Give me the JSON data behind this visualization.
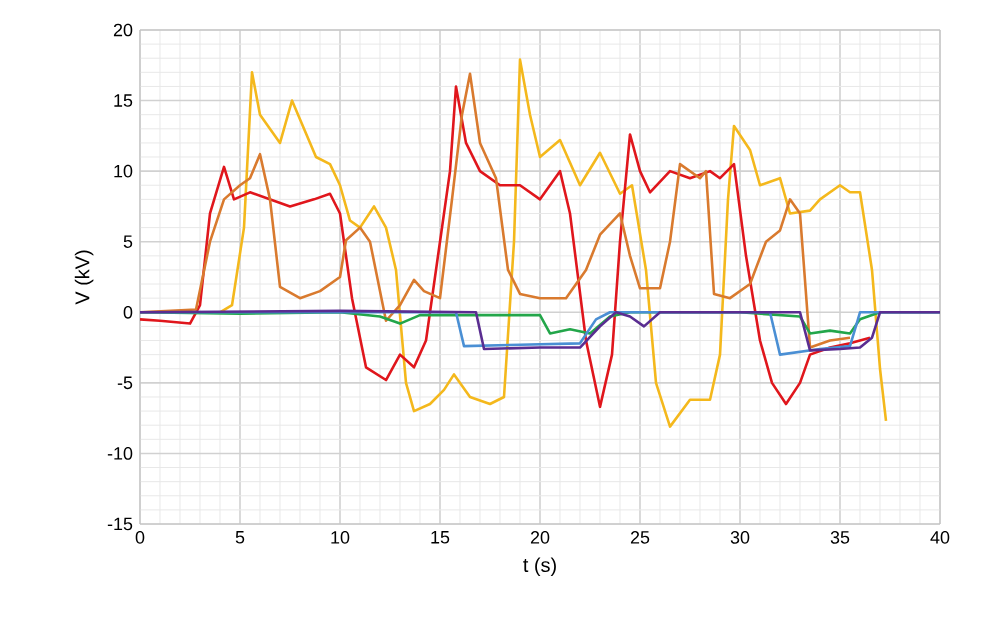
{
  "chart_data": {
    "type": "line",
    "xlabel": "t (s)",
    "ylabel": "V (kV)",
    "xlim": [
      0,
      40
    ],
    "ylim": [
      -15,
      20
    ],
    "xticks": [
      0,
      5,
      10,
      15,
      20,
      25,
      30,
      35,
      40
    ],
    "yticks": [
      -15,
      -10,
      -5,
      0,
      5,
      10,
      15,
      20
    ],
    "grid": true,
    "marker": "none",
    "line_style": "solid",
    "series": [
      {
        "color": "#f4b81c",
        "x": [
          0,
          4,
          4.6,
          5.2,
          5.6,
          6.0,
          6.5,
          7.0,
          7.6,
          8.2,
          8.8,
          9.5,
          10.0,
          10.5,
          11.0,
          11.7,
          12.3,
          12.8,
          13.3,
          13.7,
          14.5,
          15.2,
          15.7,
          16.5,
          17.5,
          18.2,
          18.7,
          19.0,
          19.5,
          20.0,
          21.0,
          22.0,
          23.0,
          24.0,
          24.6,
          25.3,
          25.8,
          26.5,
          27.5,
          28.5,
          29.0,
          29.4,
          29.7,
          30.5,
          31.0,
          32.0,
          32.5,
          33.5,
          34.0,
          35.0,
          35.5,
          36.0,
          36.6,
          37.0,
          37.3
        ],
        "values": [
          0,
          0,
          0.5,
          6,
          17,
          14,
          13,
          12,
          15,
          13,
          11,
          10.5,
          9,
          6.5,
          6,
          7.5,
          6,
          3,
          -5,
          -7,
          -6.5,
          -5.5,
          -4.4,
          -6,
          -6.5,
          -6,
          5,
          17.9,
          14,
          11,
          12.2,
          9,
          11.3,
          8.4,
          9,
          3,
          -5,
          -8.1,
          -6.2,
          -6.2,
          -3,
          8,
          13.2,
          11.5,
          9,
          9.5,
          7,
          7.2,
          8,
          9,
          8.5,
          8.5,
          3,
          -4,
          -7.7
        ]
      },
      {
        "color": "#e0161c",
        "x": [
          0,
          1,
          2.5,
          3.0,
          3.5,
          4.2,
          4.7,
          5.5,
          6.5,
          7.5,
          8.7,
          9.5,
          10.0,
          10.6,
          11.3,
          12.3,
          13.0,
          13.7,
          14.3,
          15.0,
          15.5,
          15.8,
          16.3,
          17.0,
          18.0,
          19.0,
          20.0,
          21.0,
          21.5,
          22.3,
          23.0,
          23.6,
          24.0,
          24.5,
          25.0,
          25.5,
          26.5,
          27.5,
          28.5,
          29.0,
          29.7,
          30.3,
          31.0,
          31.6,
          32.3,
          33.0,
          33.5,
          34.5,
          35.5,
          36.5
        ],
        "values": [
          -0.5,
          -0.6,
          -0.8,
          0.5,
          7,
          10.3,
          8,
          8.5,
          8,
          7.5,
          8,
          8.4,
          7,
          1,
          -3.9,
          -4.8,
          -3,
          -3.9,
          -2,
          5,
          10,
          16,
          12,
          10,
          9,
          9,
          8,
          10,
          7,
          -2,
          -6.7,
          -3,
          5,
          12.6,
          10,
          8.5,
          10,
          9.5,
          10,
          9.5,
          10.5,
          4,
          -2,
          -5,
          -6.5,
          -5,
          -3,
          -2.5,
          -2.2,
          -1.8
        ]
      },
      {
        "color": "#d97a2e",
        "x": [
          0,
          2.8,
          3.5,
          4.2,
          5.0,
          5.5,
          6.0,
          6.5,
          7.0,
          8.0,
          9.0,
          10.0,
          10.3,
          11.0,
          11.5,
          12.3,
          13.0,
          13.7,
          14.2,
          15.0,
          15.6,
          16.1,
          16.5,
          17.0,
          17.8,
          18.4,
          19.0,
          20.0,
          21.3,
          22.3,
          23.0,
          24.0,
          24.5,
          25.0,
          26.0,
          26.5,
          27.0,
          28.0,
          28.3,
          28.7,
          29.5,
          30.5,
          31.3,
          32.0,
          32.5,
          33.0,
          33.5,
          34.5,
          35.5
        ],
        "values": [
          0,
          0.2,
          5,
          8,
          9,
          9.5,
          11.2,
          8,
          1.8,
          1,
          1.5,
          2.5,
          5.1,
          6,
          5,
          -0.6,
          0.5,
          2.3,
          1.5,
          1,
          8,
          14,
          16.9,
          12,
          9.5,
          3,
          1.3,
          1,
          1,
          3,
          5.5,
          7,
          4,
          1.7,
          1.7,
          5,
          10.5,
          9.5,
          10,
          1.3,
          1,
          2,
          5,
          5.8,
          8,
          7,
          -2.5,
          -2,
          -1.8
        ]
      },
      {
        "color": "#23a64a",
        "x": [
          0,
          5,
          10,
          12,
          13,
          14,
          20,
          20.5,
          21.5,
          22.5,
          23.5,
          24.5,
          30,
          33,
          33.5,
          34.5,
          35.5,
          36,
          37,
          40
        ],
        "values": [
          0,
          -0.1,
          0,
          -0.3,
          -0.8,
          -0.2,
          -0.2,
          -1.5,
          -1.2,
          -1.5,
          -0.3,
          0,
          0,
          -0.3,
          -1.5,
          -1.3,
          -1.5,
          -0.5,
          0,
          0
        ]
      },
      {
        "color": "#4a8fd4",
        "x": [
          0,
          10,
          15.8,
          16.2,
          19,
          22,
          22.8,
          23.5,
          30,
          31.5,
          32,
          34,
          35.5,
          36,
          40
        ],
        "values": [
          0,
          0,
          0,
          -2.4,
          -2.3,
          -2.2,
          -0.5,
          0,
          0,
          0,
          -3,
          -2.6,
          -2.4,
          0,
          0
        ]
      },
      {
        "color": "#5a2d91",
        "x": [
          0,
          10,
          16.8,
          17.2,
          20,
          22,
          23,
          23.8,
          24.5,
          25.2,
          26,
          33,
          33.5,
          35,
          36,
          36.6,
          37,
          40
        ],
        "values": [
          0,
          0.1,
          0,
          -2.6,
          -2.5,
          -2.5,
          -1,
          0,
          -0.3,
          -1,
          0,
          0,
          -2.7,
          -2.6,
          -2.5,
          -1.8,
          0,
          0
        ]
      }
    ]
  }
}
